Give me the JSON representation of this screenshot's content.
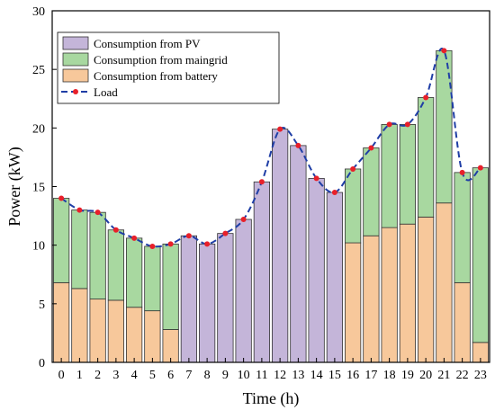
{
  "chart_data": {
    "type": "bar",
    "stacked": true,
    "xlabel": "Time (h)",
    "ylabel": "Power (kW)",
    "ylim": [
      0,
      30
    ],
    "yticks": [
      0,
      5,
      10,
      15,
      20,
      25,
      30
    ],
    "categories": [
      "0",
      "1",
      "2",
      "3",
      "4",
      "5",
      "6",
      "7",
      "8",
      "9",
      "10",
      "11",
      "12",
      "13",
      "14",
      "15",
      "16",
      "17",
      "18",
      "19",
      "20",
      "21",
      "22",
      "23"
    ],
    "series": [
      {
        "name": "Consumption from PV",
        "color": "#c4b5d9",
        "values": [
          0,
          0,
          0,
          0,
          0,
          0,
          0,
          10.8,
          10.1,
          11.0,
          12.2,
          15.4,
          19.9,
          18.5,
          15.7,
          14.5,
          0,
          0,
          0,
          0,
          0,
          0,
          0,
          0
        ]
      },
      {
        "name": "Consumption from maingrid",
        "color": "#a8d8a0",
        "values": [
          7.2,
          6.7,
          7.4,
          6.0,
          5.9,
          5.5,
          7.3,
          0,
          0,
          0,
          0,
          0,
          0,
          0,
          0,
          0,
          6.3,
          7.5,
          8.8,
          8.5,
          10.2,
          13.0,
          9.4,
          14.9
        ]
      },
      {
        "name": "Consumption from battery",
        "color": "#f7c89b",
        "values": [
          6.8,
          6.3,
          5.4,
          5.3,
          4.7,
          4.4,
          2.8,
          0,
          0,
          0,
          0,
          0,
          0,
          0,
          0,
          0,
          10.2,
          10.8,
          11.5,
          11.8,
          12.4,
          13.6,
          6.8,
          1.7
        ]
      }
    ],
    "line_series": {
      "name": "Load",
      "color": "#1f3ea6",
      "marker_color": "#e8202a",
      "values": [
        14.0,
        13.0,
        12.8,
        11.3,
        10.6,
        9.9,
        10.1,
        10.8,
        10.1,
        11.0,
        12.2,
        15.4,
        19.9,
        18.5,
        15.7,
        14.5,
        16.5,
        18.3,
        20.3,
        20.3,
        22.6,
        26.6,
        16.2,
        16.6
      ]
    },
    "legend_position": "top-left",
    "grid": false
  }
}
